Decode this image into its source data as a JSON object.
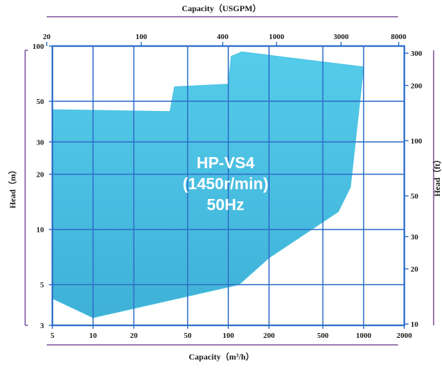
{
  "chart_data": {
    "type": "area",
    "title": "",
    "annotation_lines": [
      "HP-VS4",
      "(1450r/min)",
      "50Hz"
    ],
    "xlabel_bottom": "Capacity（m³/h）",
    "xlabel_top": "Capacity（USGPM）",
    "ylabel_left": "Head（m）",
    "ylabel_right": "Head（ft）",
    "x_scale": "log",
    "y_scale": "log",
    "xlim_bottom": [
      5,
      2000
    ],
    "ylim_left": [
      3,
      100
    ],
    "x_ticks_bottom": [
      5,
      10,
      20,
      50,
      100,
      200,
      500,
      1000,
      2000
    ],
    "x_ticks_top": [
      20,
      100,
      400,
      1000,
      3000,
      8000
    ],
    "y_ticks_left": [
      3,
      5,
      10,
      20,
      30,
      50,
      100
    ],
    "y_ticks_right": [
      10,
      20,
      30,
      50,
      100,
      200,
      300
    ],
    "grid": true,
    "colors": {
      "fill": "#4AC2E2",
      "grid": "#2F6FC8",
      "frame": "#2F6FC8",
      "side_lines": "#7A4C98",
      "overlay_text": "#FFFFFF"
    },
    "series": [
      {
        "x": [
          5,
          37,
          40,
          100,
          105,
          126,
          1000,
          800,
          650,
          200,
          120,
          10,
          5
        ],
        "y": [
          45,
          44,
          60,
          62,
          88,
          93,
          77,
          17,
          12.5,
          7,
          5,
          3.3,
          4.2
        ]
      }
    ]
  }
}
